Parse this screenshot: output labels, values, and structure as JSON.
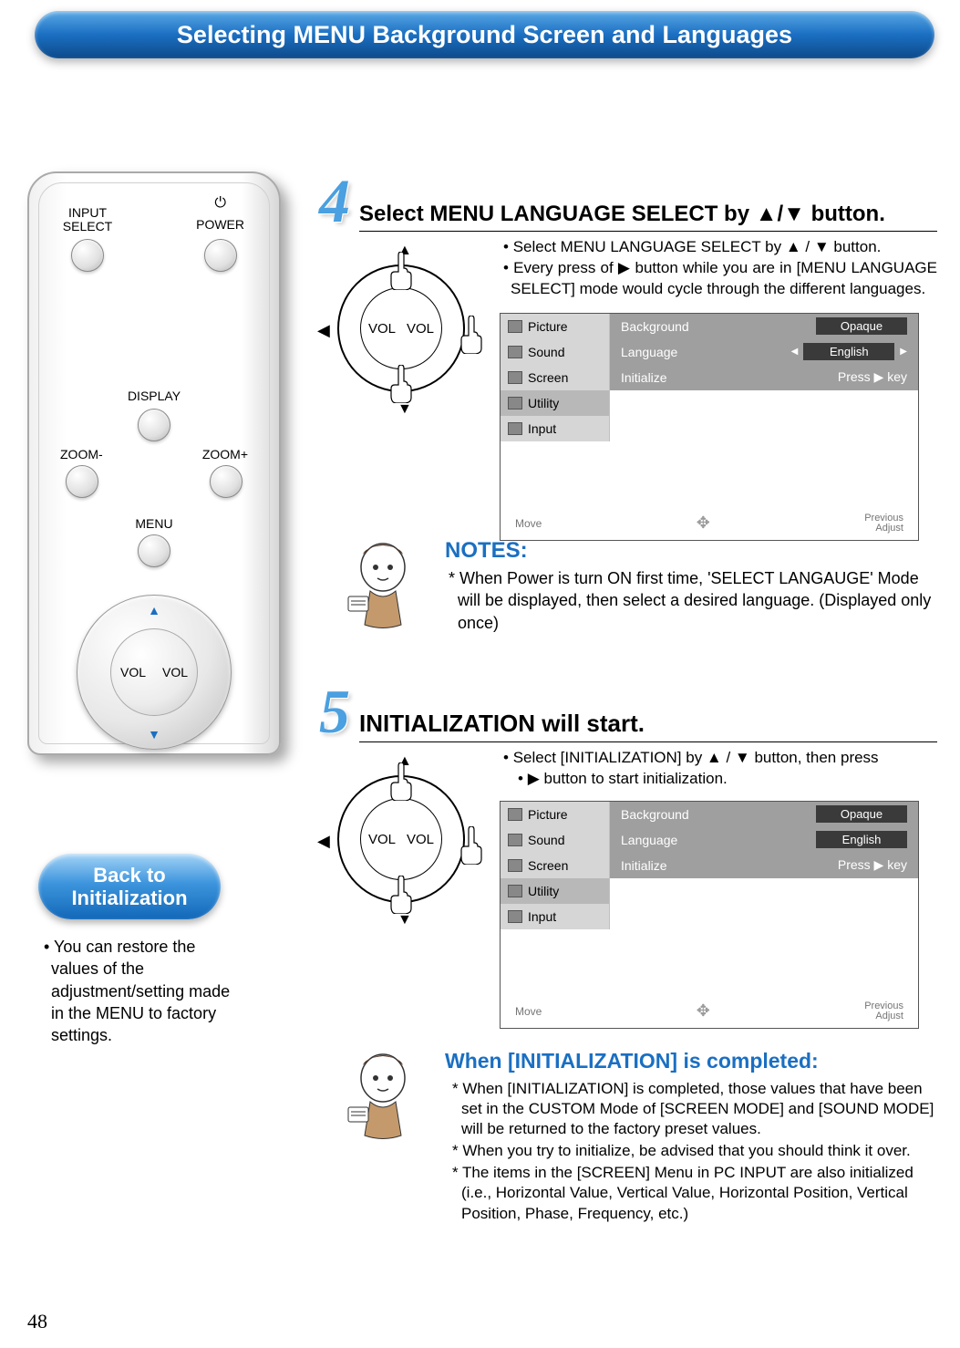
{
  "page_number": "48",
  "title": "Selecting MENU Background Screen and Languages",
  "remote": {
    "input_select": "INPUT\nSELECT",
    "power": "POWER",
    "display": "DISPLAY",
    "zoom_minus": "ZOOM-",
    "zoom_plus": "ZOOM+",
    "menu": "MENU",
    "vol_l": "VOL",
    "vol_r": "VOL"
  },
  "back_box": {
    "heading_l1": "Back to",
    "heading_l2": "Initialization",
    "body": "You can restore the values of the adjustment/setting made in the MENU to factory settings."
  },
  "step4": {
    "num": "4",
    "title": "Select MENU LANGUAGE SELECT by ▲/▼ button.",
    "bullet1": "Select MENU LANGUAGE SELECT by ▲ / ▼ button.",
    "bullet2": "Every press of ▶ button while you are in [MENU LANGUAGE SELECT] mode would cycle through the different languages.",
    "dial": {
      "vol_l": "VOL",
      "vol_r": "VOL",
      "left_tri": "◀"
    }
  },
  "menu4": {
    "left": [
      "Picture",
      "Sound",
      "Screen",
      "Utility",
      "Input"
    ],
    "selected_left_index": 3,
    "rows": [
      {
        "label": "Background",
        "value": "Opaque",
        "style": "pill"
      },
      {
        "label": "Language",
        "value": "English",
        "style": "pill-sel"
      },
      {
        "label": "Initialize",
        "value": "Press ▶ key",
        "style": "text"
      }
    ],
    "foot_move": "Move",
    "foot_prev": "Previous",
    "foot_adj": "Adjust"
  },
  "notes": {
    "heading": "NOTES:",
    "body": "When Power is turn ON first time, 'SELECT LANGAUGE' Mode will be displayed, then select a desired language. (Displayed only once)"
  },
  "step5": {
    "num": "5",
    "title": "INITIALIZATION will start.",
    "bullet1": "Select [INITIALIZATION] by ▲ / ▼ button, then press",
    "bullet2": "▶ button to start initialization.",
    "dial": {
      "vol_l": "VOL",
      "vol_r": "VOL",
      "left_tri": "◀"
    }
  },
  "menu5": {
    "left": [
      "Picture",
      "Sound",
      "Screen",
      "Utility",
      "Input"
    ],
    "selected_left_index": 3,
    "rows": [
      {
        "label": "Background",
        "value": "Opaque",
        "style": "pill"
      },
      {
        "label": "Language",
        "value": "English",
        "style": "pill"
      },
      {
        "label": "Initialize",
        "value": "Press ▶ key",
        "style": "text"
      }
    ],
    "foot_move": "Move",
    "foot_prev": "Previous",
    "foot_adj": "Adjust"
  },
  "completed": {
    "heading": "When [INITIALIZATION] is completed:",
    "p1": "* When [INITIALIZATION] is completed, those values that have been set in the CUSTOM Mode of [SCREEN MODE] and [SOUND MODE] will be returned to the factory preset values.",
    "p2": "* When you try to initialize, be advised that you should think it over.",
    "p3": "* The items in the [SCREEN] Menu in PC INPUT are also initialized (i.e., Horizontal Value, Vertical Value, Horizontal Position, Vertical Position, Phase, Frequency, etc.)"
  },
  "colors": {
    "title_grad_top": "#5aa9e6",
    "title_grad_bot": "#0d4a8a",
    "step_num": "#4aa0e0",
    "link_blue": "#1a6fc2",
    "menu_grey": "#9f9f9f",
    "menu_left": "#d6d6d6",
    "menu_pill": "#3a3a3a"
  }
}
